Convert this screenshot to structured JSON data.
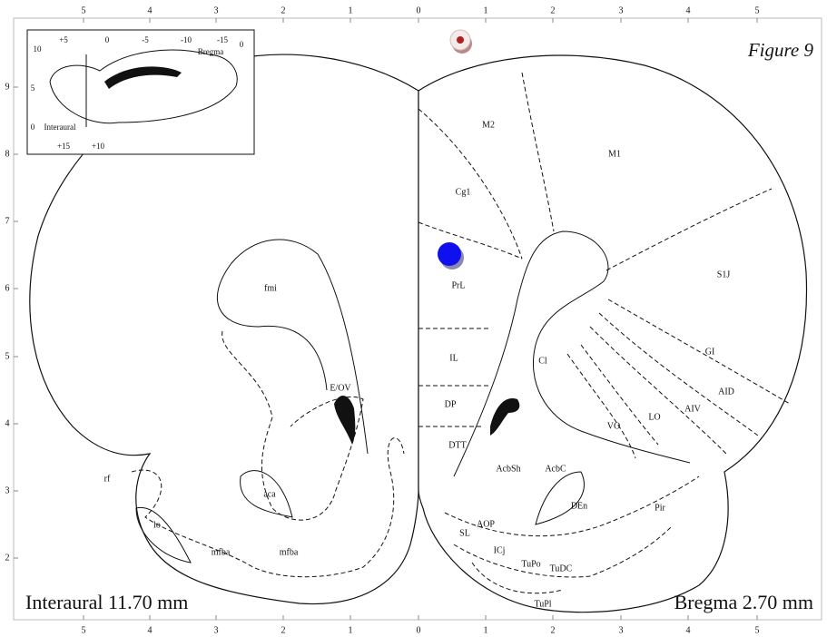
{
  "figure_title": "Figure 9",
  "interaural_label": "Interaural 11.70 mm",
  "bregma_label": "Bregma 2.70  mm",
  "top_axis": [
    "5",
    "4",
    "3",
    "2",
    "1",
    "0",
    "1",
    "2",
    "3",
    "4",
    "5"
  ],
  "bottom_axis": [
    "5",
    "4",
    "3",
    "2",
    "1",
    "0",
    "1",
    "2",
    "3",
    "4",
    "5"
  ],
  "left_axis": [
    "9",
    "8",
    "7",
    "6",
    "5",
    "4",
    "3",
    "2"
  ],
  "inset": {
    "labels": [
      "+5",
      "0",
      "-5",
      "-10",
      "-15",
      "0",
      "Bregma",
      "10",
      "5",
      "0",
      "Interaural",
      "+15",
      "+10"
    ]
  },
  "regions": [
    "M2",
    "M1",
    "Cg1",
    "S1J",
    "PrL",
    "IL",
    "Cl",
    "GI",
    "AID",
    "AIV",
    "LO",
    "VO",
    "DP",
    "DTT",
    "AcbSh",
    "AcbC",
    "DEn",
    "Pir",
    "AOP",
    "SL",
    "ICj",
    "TuPo",
    "TuDC",
    "TuPl",
    "fmi",
    "E/OV",
    "aca",
    "mfba",
    "mfba",
    "lo",
    "rf"
  ]
}
